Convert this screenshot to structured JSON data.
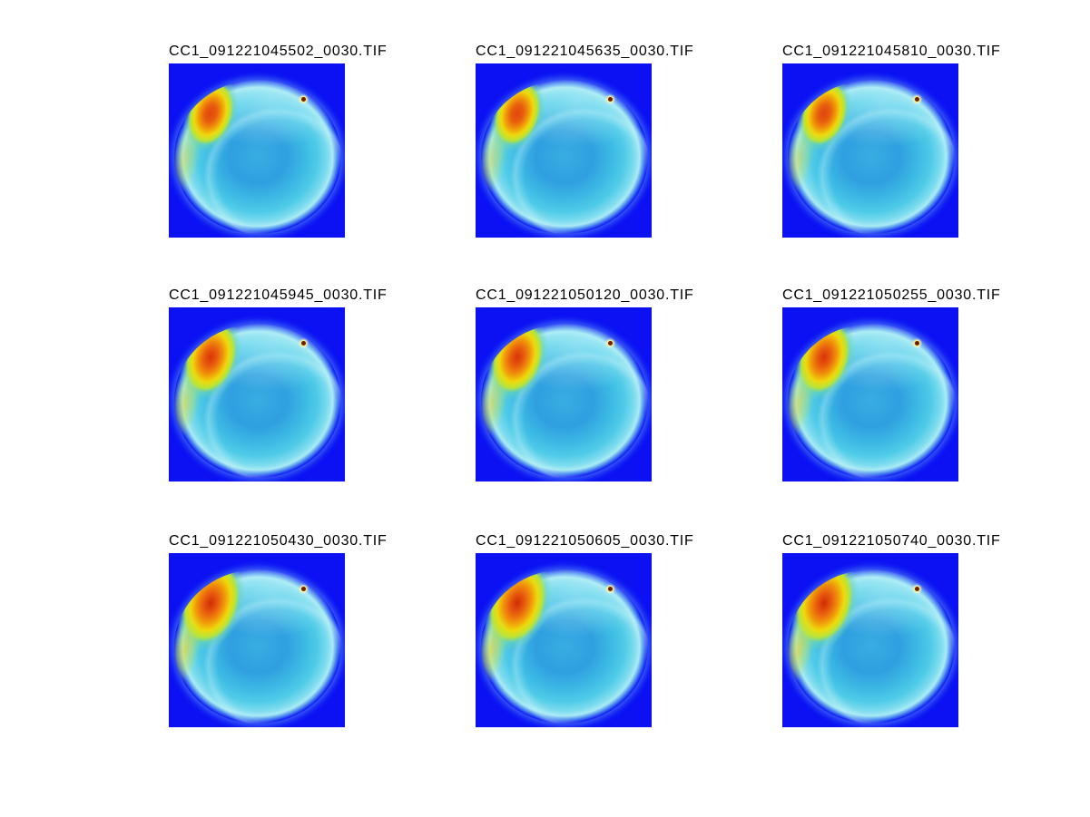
{
  "figure": {
    "tiles": [
      {
        "label": "CC1_091221045502_0030.TIF"
      },
      {
        "label": "CC1_091221045635_0030.TIF"
      },
      {
        "label": "CC1_091221045810_0030.TIF"
      },
      {
        "label": "CC1_091221045945_0030.TIF"
      },
      {
        "label": "CC1_091221050120_0030.TIF"
      },
      {
        "label": "CC1_091221050255_0030.TIF"
      },
      {
        "label": "CC1_091221050430_0030.TIF"
      },
      {
        "label": "CC1_091221050605_0030.TIF"
      },
      {
        "label": "CC1_091221050740_0030.TIF"
      }
    ]
  },
  "colors": {
    "figure_background": "#ffffff",
    "panel_background": "#0b11f3",
    "disk_body": "#38ade2",
    "disk_ring": "#4fcbe8",
    "disk_rim_light": "#a9ebf4",
    "hotspot_core": "#d8380a",
    "hotspot_orange": "#f0930a",
    "hotspot_yellow": "#eeda0c",
    "marker_ring": "#ffe96a",
    "marker_center": "#6b2000",
    "title_text": "#000000"
  },
  "chart_data": {
    "type": "heatmap",
    "layout": "3x3 image montage",
    "rows": 3,
    "cols": 3,
    "colormap": "jet",
    "titles": [
      "CC1_091221045502_0030.TIF",
      "CC1_091221045635_0030.TIF",
      "CC1_091221045810_0030.TIF",
      "CC1_091221045945_0030.TIF",
      "CC1_091221050120_0030.TIF",
      "CC1_091221050255_0030.TIF",
      "CC1_091221050430_0030.TIF",
      "CC1_091221050605_0030.TIF",
      "CC1_091221050740_0030.TIF"
    ],
    "description": "Nine successive false-color all-sky camera frames: a cyan circular sky disk on a saturated blue background, a red-orange-yellow glow region at the upper-left of the disk that grows more intense frame by frame, a brighter cap along the top of the disk, and a small dark dot with a light ring near the upper-right of the disk."
  }
}
